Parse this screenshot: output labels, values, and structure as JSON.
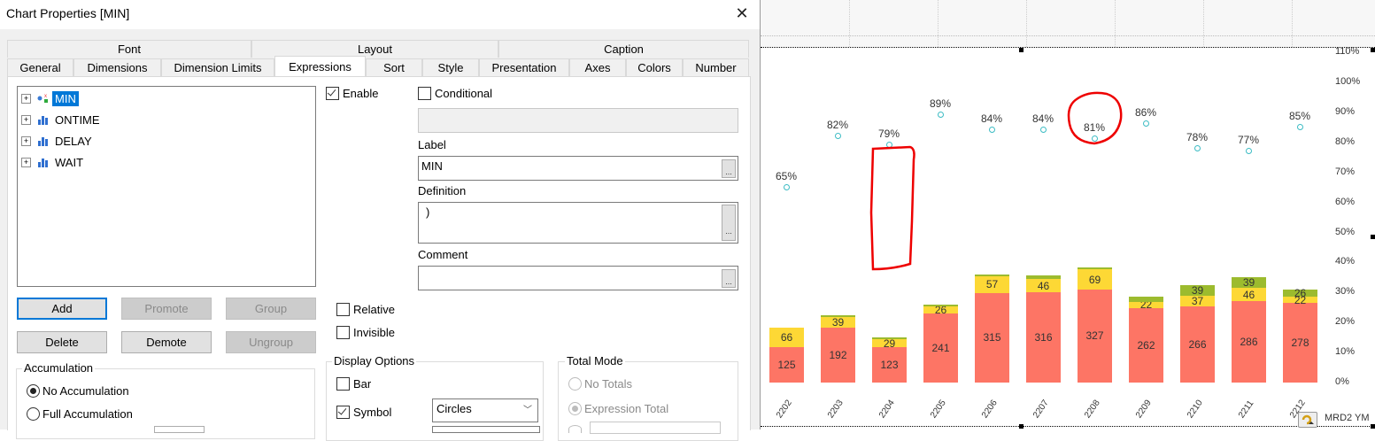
{
  "dialog": {
    "title": "Chart Properties [MIN]",
    "close_icon": "close-icon",
    "tabs_row1": [
      {
        "label": "Font"
      },
      {
        "label": "Layout"
      },
      {
        "label": "Caption"
      }
    ],
    "tabs_row2": [
      {
        "label": "General"
      },
      {
        "label": "Dimensions"
      },
      {
        "label": "Dimension Limits"
      },
      {
        "label": "Expressions",
        "active": true
      },
      {
        "label": "Sort"
      },
      {
        "label": "Style"
      },
      {
        "label": "Presentation"
      },
      {
        "label": "Axes"
      },
      {
        "label": "Colors"
      },
      {
        "label": "Number"
      }
    ],
    "expressions": [
      {
        "label": "MIN",
        "icon": "symbol-icon",
        "selected": true
      },
      {
        "label": "ONTIME",
        "icon": "bar-chart-icon"
      },
      {
        "label": "DELAY",
        "icon": "bar-chart-icon"
      },
      {
        "label": "WAIT",
        "icon": "bar-chart-icon"
      }
    ],
    "buttons": {
      "add": "Add",
      "promote": "Promote",
      "group": "Group",
      "delete": "Delete",
      "demote": "Demote",
      "ungroup": "Ungroup"
    },
    "enable_label": "Enable",
    "conditional_label": "Conditional",
    "conditional_value": "",
    "label_caption": "Label",
    "label_value": "MIN",
    "definition_caption": "Definition",
    "definition_value": ")",
    "comment_caption": "Comment",
    "comment_value": "",
    "ellipsis": "...",
    "relative_label": "Relative",
    "invisible_label": "Invisible",
    "accumulation": {
      "title": "Accumulation",
      "options": [
        "No Accumulation",
        "Full Accumulation"
      ],
      "selected": "No Accumulation"
    },
    "display_options": {
      "title": "Display Options",
      "bar_label": "Bar",
      "symbol_label": "Symbol",
      "symbol_value": "Circles"
    },
    "total_mode": {
      "title": "Total Mode",
      "options": [
        "No Totals",
        "Expression Total"
      ],
      "selected": "Expression Total"
    }
  },
  "chart": {
    "colors": {
      "ontime": "#fd7565",
      "delay": "#fdd835",
      "wait": "#9cbb2e",
      "symbol": "#3cbcc4"
    },
    "dimension_label": "MRD2 YM",
    "cycle_icon": "cycle-group-icon"
  },
  "chart_data": {
    "type": "bar",
    "stacked": true,
    "categories": [
      "2202",
      "2203",
      "2204",
      "2205",
      "2206",
      "2207",
      "2208",
      "2209",
      "2210",
      "2211",
      "2212"
    ],
    "series": [
      {
        "name": "ONTIME",
        "values": [
          125,
          192,
          123,
          241,
          315,
          316,
          327,
          262,
          266,
          286,
          278
        ],
        "labels": [
          "125",
          "192",
          "123",
          "241",
          "315",
          "316",
          "327",
          "262",
          "266",
          "286",
          "278"
        ]
      },
      {
        "name": "DELAY",
        "values": [
          66,
          39,
          29,
          26,
          57,
          46,
          69,
          22,
          37,
          46,
          22
        ],
        "labels": [
          "66",
          "39",
          "29",
          "26",
          "57",
          "46",
          "69",
          "22",
          "37",
          "46",
          "22"
        ]
      },
      {
        "name": "WAIT",
        "values": [
          0,
          1,
          1,
          2,
          5,
          15,
          8,
          17,
          39,
          39,
          26
        ],
        "labels": [
          "",
          "",
          "",
          "",
          "",
          "",
          "",
          "",
          "39",
          "39",
          "26"
        ]
      },
      {
        "name": "MIN",
        "type": "symbol",
        "values": [
          65,
          82,
          79,
          89,
          84,
          84,
          81,
          86,
          78,
          77,
          85
        ],
        "labels": [
          "65%",
          "82%",
          "79%",
          "89%",
          "84%",
          "84%",
          "81%",
          "86%",
          "78%",
          "77%",
          "85%"
        ]
      }
    ],
    "y_right_ticks": [
      "0%",
      "10%",
      "20%",
      "30%",
      "40%",
      "50%",
      "60%",
      "70%",
      "80%",
      "90%",
      "100%",
      "110%"
    ],
    "ylim_right": [
      0,
      110
    ],
    "xlabel": "MRD2 YM",
    "annotations": [
      "red rectangle around empty region above 2204",
      "red circle around 2208 bar top"
    ]
  }
}
